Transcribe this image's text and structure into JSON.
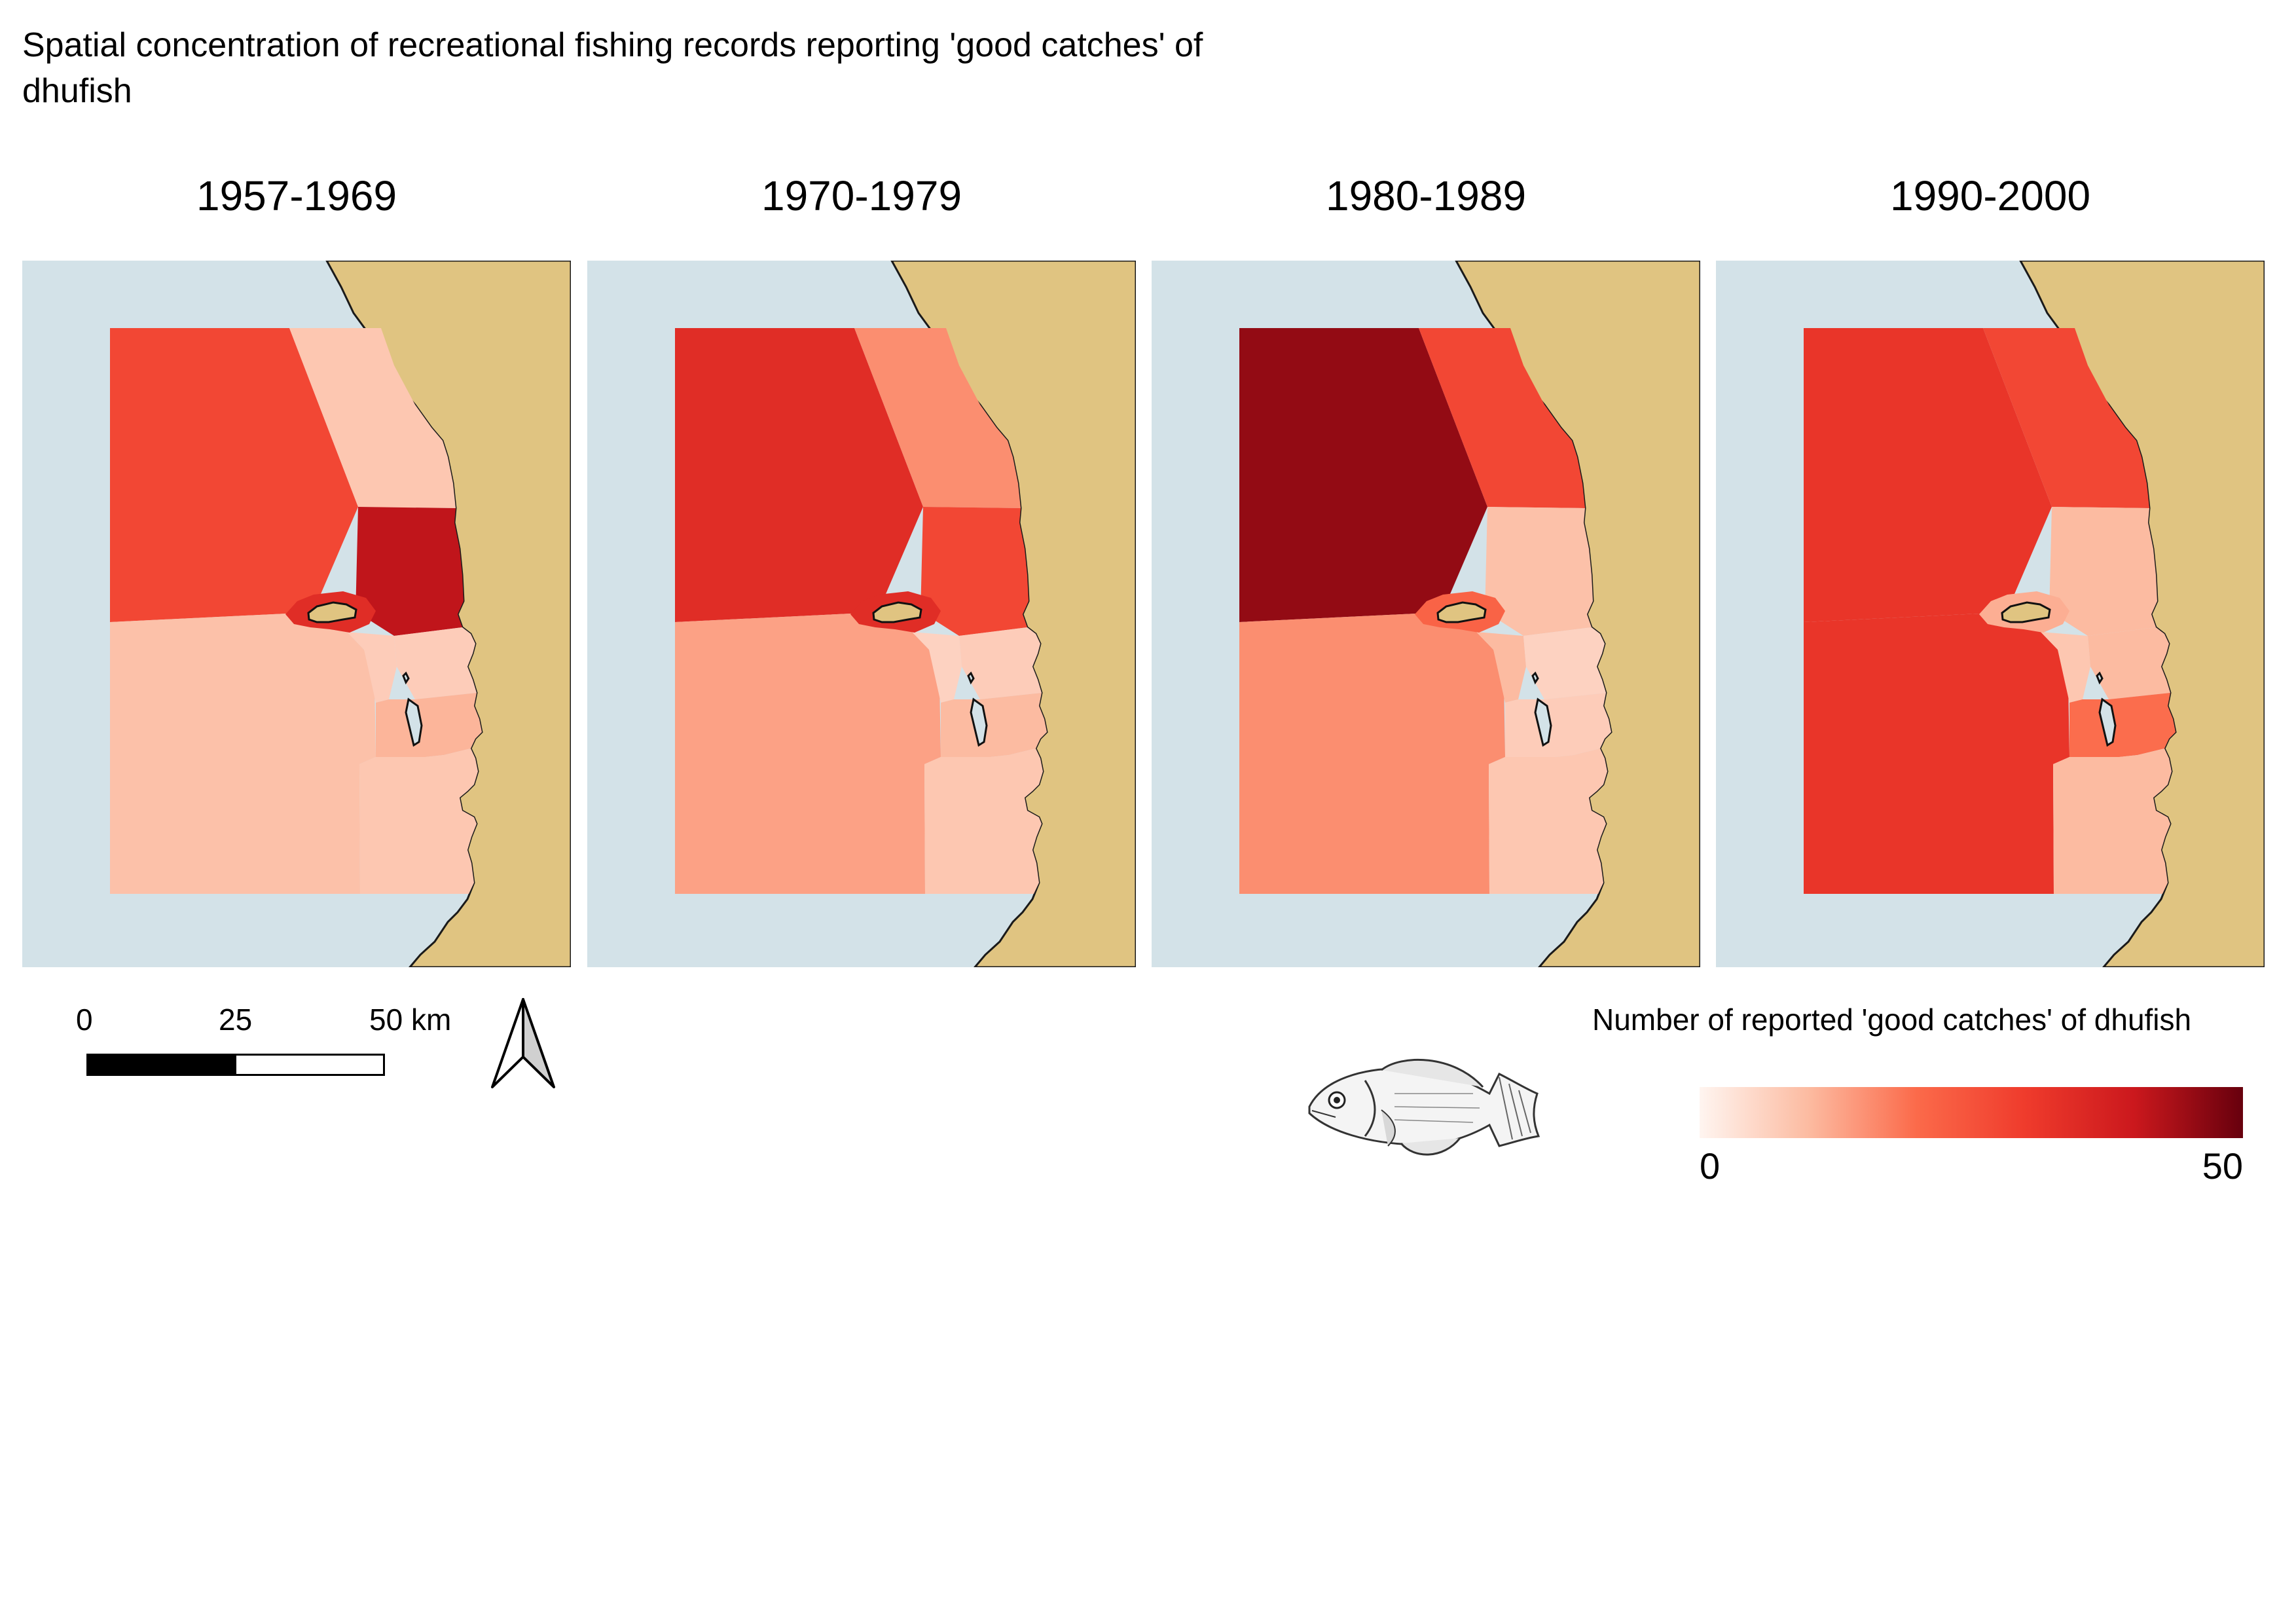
{
  "title": "Spatial concentration of recreational fishing records reporting 'good catches' of dhufish",
  "colors": {
    "ocean": "#d3e2e8",
    "land": "#e0c481",
    "coastline": "#1a1a1a"
  },
  "map_data": {
    "panels": [
      {
        "period": "1957-1969",
        "regions": {
          "north_offshore": 30,
          "north_nearshore": 8,
          "mid_nearshore": 42,
          "island_ring": 36,
          "south_offshore": 9,
          "inlet_north": 7,
          "inlet_east": 7,
          "inlet_mid": 11,
          "south_nearshore": 8
        }
      },
      {
        "period": "1970-1979",
        "regions": {
          "north_offshore": 36,
          "north_nearshore": 17,
          "mid_nearshore": 30,
          "island_ring": 36,
          "south_offshore": 14,
          "inlet_north": 6,
          "inlet_east": 7,
          "inlet_mid": 10,
          "south_nearshore": 8
        }
      },
      {
        "period": "1980-1989",
        "regions": {
          "north_offshore": 46,
          "north_nearshore": 30,
          "mid_nearshore": 9,
          "island_ring": 24,
          "south_offshore": 17,
          "inlet_north": 10,
          "inlet_east": 6,
          "inlet_mid": 7,
          "south_nearshore": 8
        }
      },
      {
        "period": "1990-2000",
        "regions": {
          "north_offshore": 34,
          "north_nearshore": 30,
          "mid_nearshore": 10,
          "island_ring": 12,
          "south_offshore": 34,
          "inlet_north": 8,
          "inlet_east": 10,
          "inlet_mid": 22,
          "south_nearshore": 10
        }
      }
    ]
  },
  "scalebar": {
    "ticks": [
      "0",
      "25",
      "50 km"
    ]
  },
  "legend": {
    "title": "Number of reported 'good catches' of dhufish",
    "min_label": "0",
    "max_label": "50",
    "min_value": 0,
    "max_value": 50
  },
  "icons": {
    "north_arrow": "north-arrow-icon",
    "fish": "dhufish-illustration"
  }
}
